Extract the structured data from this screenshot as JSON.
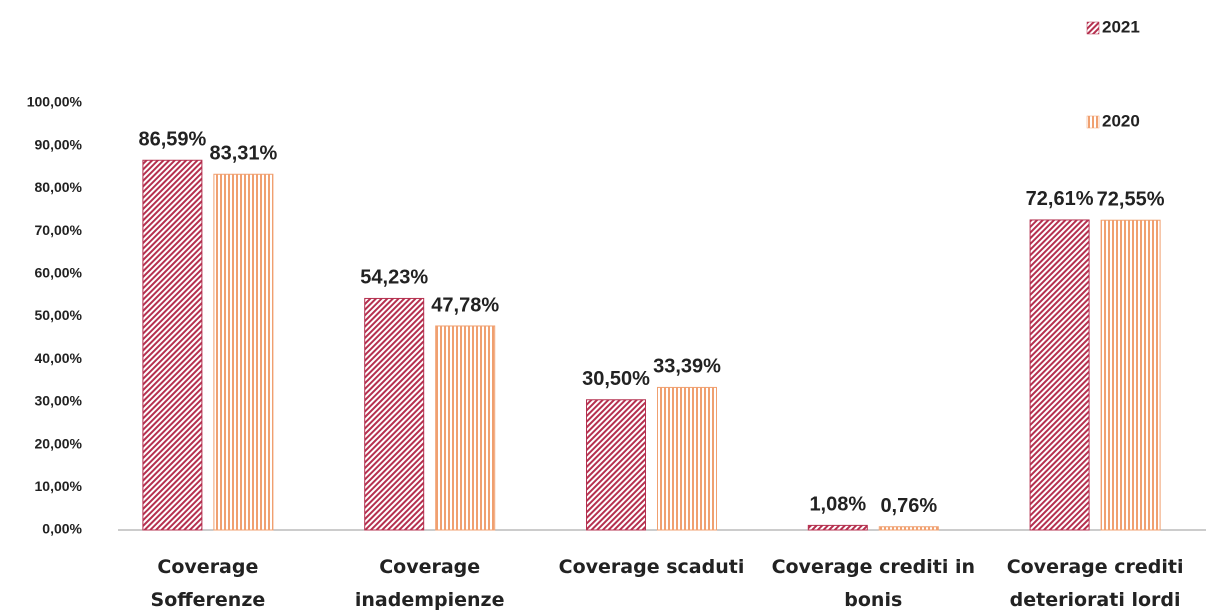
{
  "chart_data": {
    "type": "bar",
    "categories": [
      [
        "Coverage",
        "Sofferenze"
      ],
      [
        "Coverage",
        "inadempienze"
      ],
      [
        "Coverage scaduti"
      ],
      [
        "Coverage crediti in",
        "bonis"
      ],
      [
        "Coverage crediti",
        "deteriorati lordi"
      ]
    ],
    "series": [
      {
        "name": "2021",
        "color": "#b5304f",
        "values": [
          86.59,
          54.23,
          30.5,
          1.08,
          72.61
        ],
        "value_labels": [
          "86,59%",
          "54,23%",
          "30,50%",
          "1,08%",
          "72,61%"
        ]
      },
      {
        "name": "2020",
        "color": "#f0a070",
        "values": [
          83.31,
          47.78,
          33.39,
          0.76,
          72.55
        ],
        "value_labels": [
          "83,31%",
          "47,78%",
          "33,39%",
          "0,76%",
          "72,55%"
        ]
      }
    ],
    "ylim": [
      0,
      100
    ],
    "yticks": [
      {
        "value": 0,
        "label": "0,00%"
      },
      {
        "value": 10,
        "label": "10,00%"
      },
      {
        "value": 20,
        "label": "20,00%"
      },
      {
        "value": 30,
        "label": "30,00%"
      },
      {
        "value": 40,
        "label": "40,00%"
      },
      {
        "value": 50,
        "label": "50,00%"
      },
      {
        "value": 60,
        "label": "60,00%"
      },
      {
        "value": 70,
        "label": "70,00%"
      },
      {
        "value": 80,
        "label": "80,00%"
      },
      {
        "value": 90,
        "label": "90,00%"
      },
      {
        "value": 100,
        "label": "100,00%"
      }
    ],
    "grid": false,
    "legend": "top-right"
  }
}
